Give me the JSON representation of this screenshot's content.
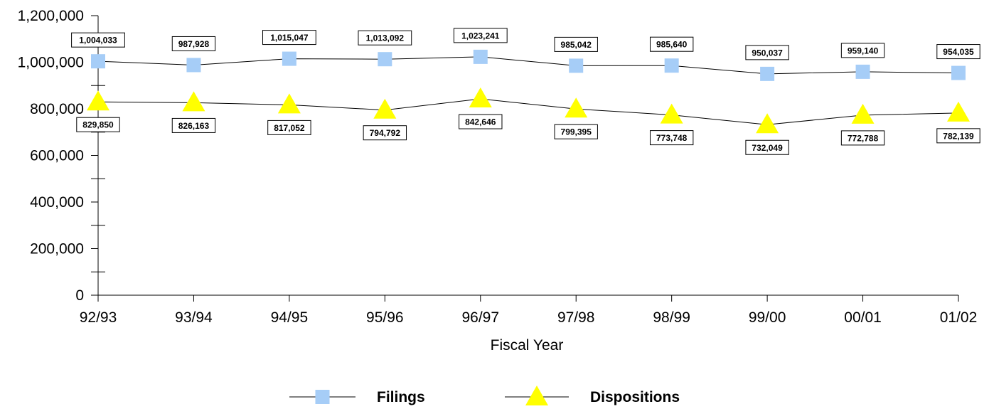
{
  "chart_data": {
    "type": "line",
    "xlabel": "Fiscal Year",
    "ylabel": "",
    "categories": [
      "92/93",
      "93/94",
      "94/95",
      "95/96",
      "96/97",
      "97/98",
      "98/99",
      "99/00",
      "00/01",
      "01/02"
    ],
    "ylim": [
      0,
      1200000
    ],
    "yticks": [
      0,
      200000,
      400000,
      600000,
      800000,
      1000000,
      1200000
    ],
    "ytick_labels": [
      "0",
      "200,000",
      "400,000",
      "600,000",
      "800,000",
      "1,000,000",
      "1,200,000"
    ],
    "grid": false,
    "legend_position": "bottom-center",
    "series": [
      {
        "name": "Filings",
        "marker": "square",
        "color": "#a6cdf7",
        "values": [
          1004033,
          987928,
          1015047,
          1013092,
          1023241,
          985042,
          985640,
          950037,
          959140,
          954035
        ],
        "labels": [
          "1,004,033",
          "987,928",
          "1,015,047",
          "1,013,092",
          "1,023,241",
          "985,042",
          "985,640",
          "950,037",
          "959,140",
          "954,035"
        ]
      },
      {
        "name": "Dispositions",
        "marker": "triangle",
        "color": "#ffff00",
        "values": [
          829850,
          826163,
          817052,
          794792,
          842646,
          799395,
          773748,
          732049,
          772788,
          782139
        ],
        "labels": [
          "829,850",
          "826,163",
          "817,052",
          "794,792",
          "842,646",
          "799,395",
          "773,748",
          "732,049",
          "772,788",
          "782,139"
        ]
      }
    ]
  }
}
